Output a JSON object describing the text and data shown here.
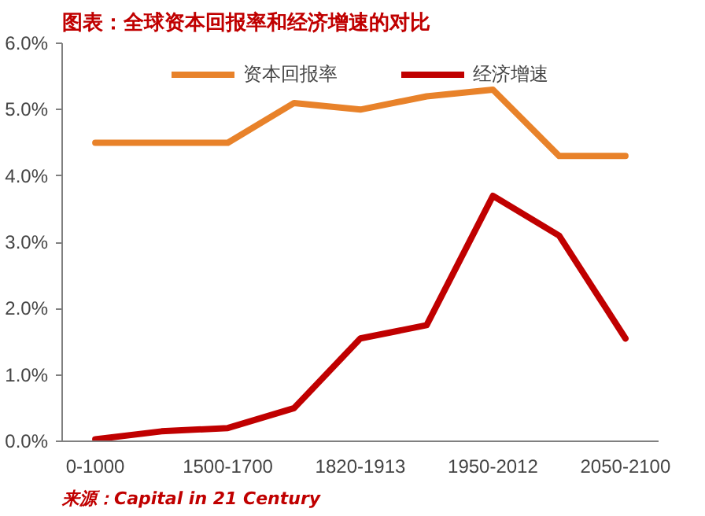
{
  "chart_data": {
    "type": "line",
    "title": "图表：全球资本回报率和经济增速的对比",
    "categories": [
      "0-1000",
      null,
      "1500-1700",
      null,
      "1820-1913",
      null,
      "1950-2012",
      null,
      "2050-2100"
    ],
    "series": [
      {
        "name": "资本回报率",
        "color": "#e8822a",
        "values": [
          4.5,
          4.5,
          4.5,
          5.1,
          5.0,
          5.2,
          5.3,
          4.3,
          4.3
        ]
      },
      {
        "name": "经济增速",
        "color": "#c00000",
        "values": [
          0.03,
          0.15,
          0.2,
          0.5,
          1.55,
          1.75,
          3.7,
          3.1,
          1.55
        ]
      }
    ],
    "ylim": [
      0,
      6
    ],
    "yticks": [
      {
        "value": 0,
        "label": "0.0%"
      },
      {
        "value": 1,
        "label": "1.0%"
      },
      {
        "value": 2,
        "label": "2.0%"
      },
      {
        "value": 3,
        "label": "3.0%"
      },
      {
        "value": 4,
        "label": "4.0%"
      },
      {
        "value": 5,
        "label": "5.0%"
      },
      {
        "value": 6,
        "label": "6.0%"
      }
    ],
    "grid": false,
    "legend": "top",
    "marker": "none",
    "line_style": "solid",
    "annotations": [
      "来源：Capital in 21 Century"
    ]
  }
}
